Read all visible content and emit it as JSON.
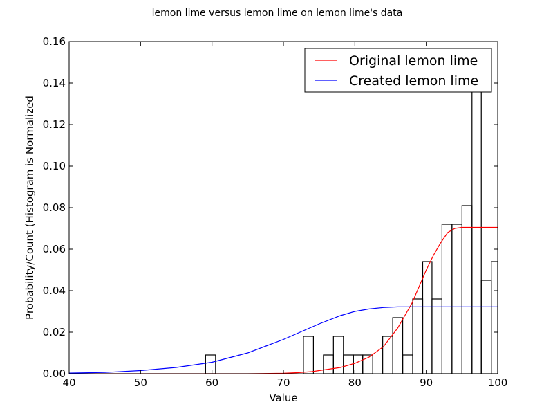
{
  "chart_data": {
    "type": "histogram+line",
    "title": "lemon lime versus lemon lime on lemon lime's data",
    "xlabel": "Value",
    "ylabel": "Probability/Count (Histogram is Normalized",
    "xlim": [
      40,
      100
    ],
    "ylim": [
      0,
      0.16
    ],
    "xticks": [
      40,
      50,
      60,
      70,
      80,
      90,
      100
    ],
    "yticks": [
      0.0,
      0.02,
      0.04,
      0.06,
      0.08,
      0.1,
      0.12,
      0.14,
      0.16
    ],
    "xtick_labels": [
      "40",
      "50",
      "60",
      "70",
      "80",
      "90",
      "100"
    ],
    "ytick_labels": [
      "0.00",
      "0.02",
      "0.04",
      "0.06",
      "0.08",
      "0.10",
      "0.12",
      "0.14",
      "0.16"
    ],
    "grid": false,
    "legend_position": "top-right",
    "histogram": {
      "bins": [
        {
          "x0": 59.1,
          "x1": 60.5,
          "value": 0.009
        },
        {
          "x0": 72.8,
          "x1": 74.2,
          "value": 0.018
        },
        {
          "x0": 75.6,
          "x1": 77.0,
          "value": 0.009
        },
        {
          "x0": 77.0,
          "x1": 78.4,
          "value": 0.018
        },
        {
          "x0": 78.4,
          "x1": 79.8,
          "value": 0.009
        },
        {
          "x0": 79.8,
          "x1": 81.1,
          "value": 0.009
        },
        {
          "x0": 81.1,
          "x1": 82.5,
          "value": 0.009
        },
        {
          "x0": 83.9,
          "x1": 85.3,
          "value": 0.018
        },
        {
          "x0": 85.3,
          "x1": 86.7,
          "value": 0.027
        },
        {
          "x0": 86.7,
          "x1": 88.1,
          "value": 0.009
        },
        {
          "x0": 88.1,
          "x1": 89.5,
          "value": 0.036
        },
        {
          "x0": 89.5,
          "x1": 90.8,
          "value": 0.054
        },
        {
          "x0": 90.8,
          "x1": 92.2,
          "value": 0.036
        },
        {
          "x0": 92.2,
          "x1": 93.6,
          "value": 0.072
        },
        {
          "x0": 93.6,
          "x1": 95.0,
          "value": 0.072
        },
        {
          "x0": 95.0,
          "x1": 96.4,
          "value": 0.081
        },
        {
          "x0": 96.4,
          "x1": 97.7,
          "value": 0.139
        },
        {
          "x0": 97.7,
          "x1": 99.1,
          "value": 0.045
        },
        {
          "x0": 99.1,
          "x1": 100.5,
          "value": 0.054
        }
      ]
    },
    "series": [
      {
        "name": "Original lemon lime",
        "color": "#ff0000",
        "points": [
          [
            40,
            0
          ],
          [
            50,
            0
          ],
          [
            60,
            0
          ],
          [
            65,
            0
          ],
          [
            70,
            0.0002
          ],
          [
            72,
            0.0005
          ],
          [
            74,
            0.001
          ],
          [
            76,
            0.002
          ],
          [
            78,
            0.003
          ],
          [
            80,
            0.005
          ],
          [
            82,
            0.008
          ],
          [
            84,
            0.013
          ],
          [
            86,
            0.022
          ],
          [
            88,
            0.034
          ],
          [
            89,
            0.042
          ],
          [
            90,
            0.05
          ],
          [
            91,
            0.057
          ],
          [
            92,
            0.063
          ],
          [
            93,
            0.068
          ],
          [
            94,
            0.07
          ],
          [
            95,
            0.0705
          ],
          [
            96,
            0.0705
          ],
          [
            100,
            0.0705
          ]
        ]
      },
      {
        "name": "Created lemon lime",
        "color": "#0000ff",
        "points": [
          [
            40,
            0.0003
          ],
          [
            45,
            0.0006
          ],
          [
            50,
            0.0015
          ],
          [
            55,
            0.003
          ],
          [
            60,
            0.0055
          ],
          [
            65,
            0.01
          ],
          [
            70,
            0.0165
          ],
          [
            73,
            0.021
          ],
          [
            75,
            0.024
          ],
          [
            78,
            0.028
          ],
          [
            80,
            0.03
          ],
          [
            82,
            0.0312
          ],
          [
            84,
            0.0319
          ],
          [
            86,
            0.0322
          ],
          [
            88,
            0.0322
          ],
          [
            90,
            0.0322
          ],
          [
            100,
            0.0322
          ]
        ]
      }
    ]
  }
}
